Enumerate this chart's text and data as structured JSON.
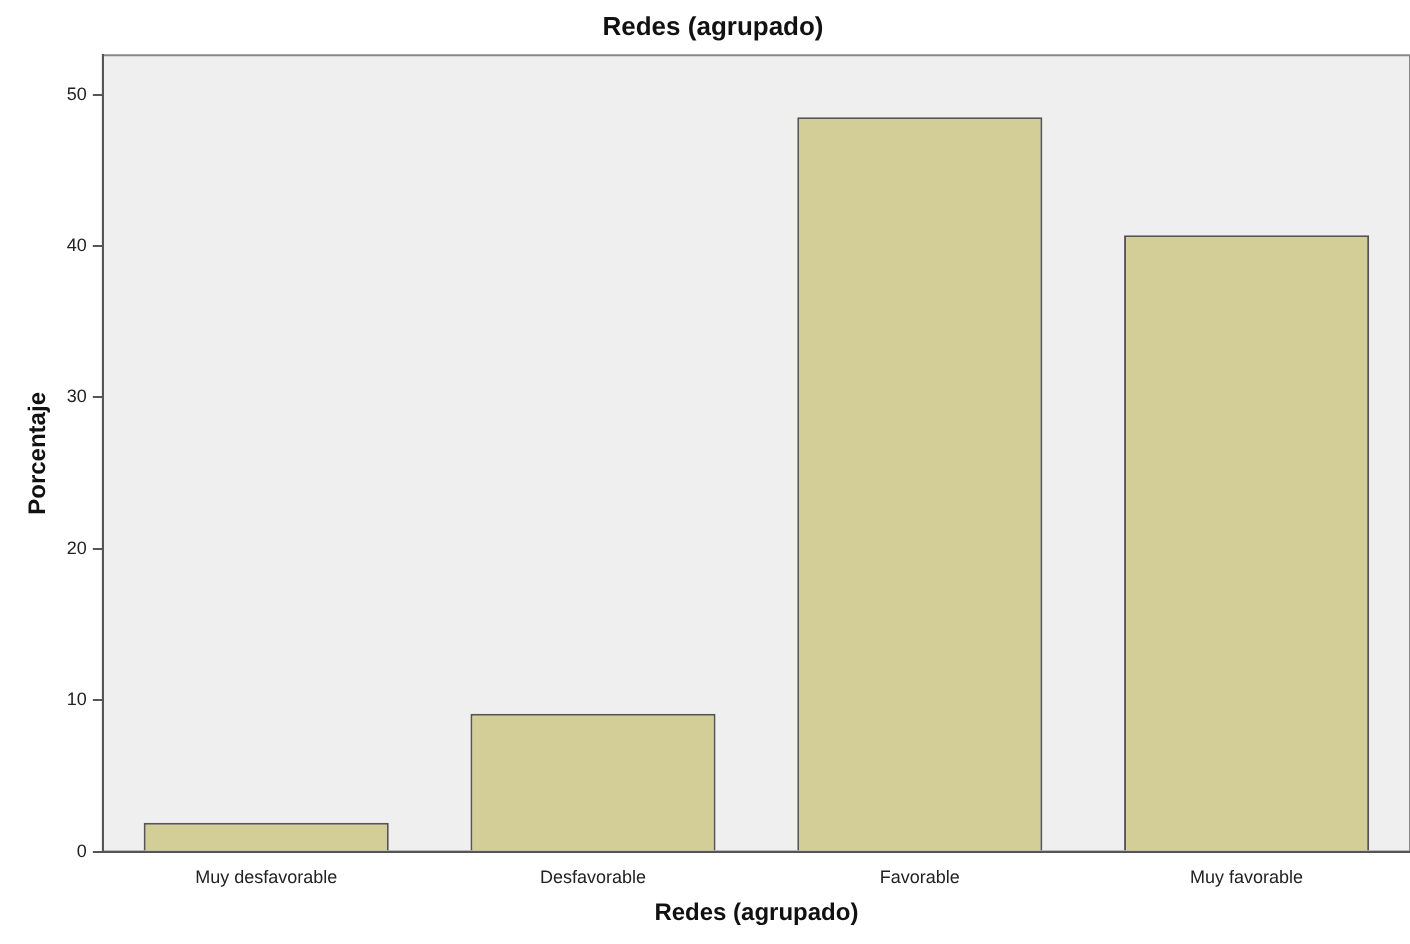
{
  "chart_data": {
    "type": "bar",
    "title": "Redes (agrupado)",
    "xlabel": "Redes (agrupado)",
    "ylabel": "Porcentaje",
    "categories": [
      "Muy desfavorable",
      "Desfavorable",
      "Favorable",
      "Muy favorable"
    ],
    "values": [
      1.9,
      9.1,
      48.5,
      40.7
    ],
    "color": "#d3ce97",
    "ylim": [
      0,
      52.6
    ],
    "yticks": [
      0,
      10,
      20,
      30,
      40,
      50
    ],
    "grid": false,
    "legend": false
  }
}
